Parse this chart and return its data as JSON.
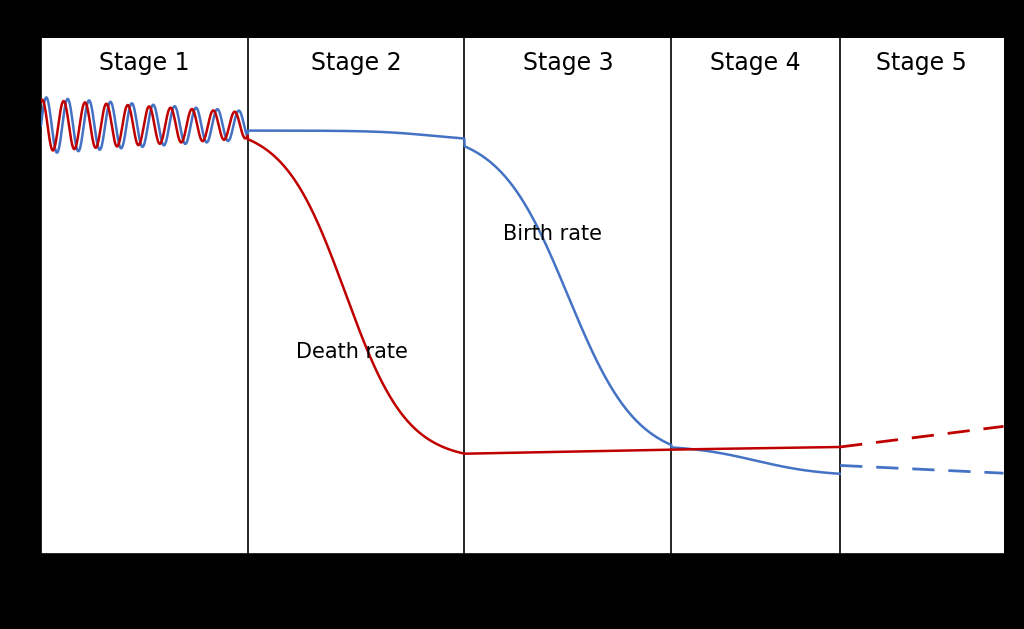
{
  "stages": [
    "Stage 1",
    "Stage 2",
    "Stage 3",
    "Stage 4",
    "Stage 5"
  ],
  "stage_boundaries": [
    0.0,
    0.215,
    0.44,
    0.655,
    0.83,
    1.0
  ],
  "birth_rate_label": "Birth rate",
  "death_rate_label": "Death rate",
  "birth_rate_color": "#4472C4",
  "death_rate_color": "#C00000",
  "background_color": "#FFFFFF",
  "outer_background": "#000000",
  "stage_label_fontsize": 17,
  "annotation_fontsize": 15,
  "figsize": [
    10.24,
    6.29
  ],
  "dpi": 100
}
